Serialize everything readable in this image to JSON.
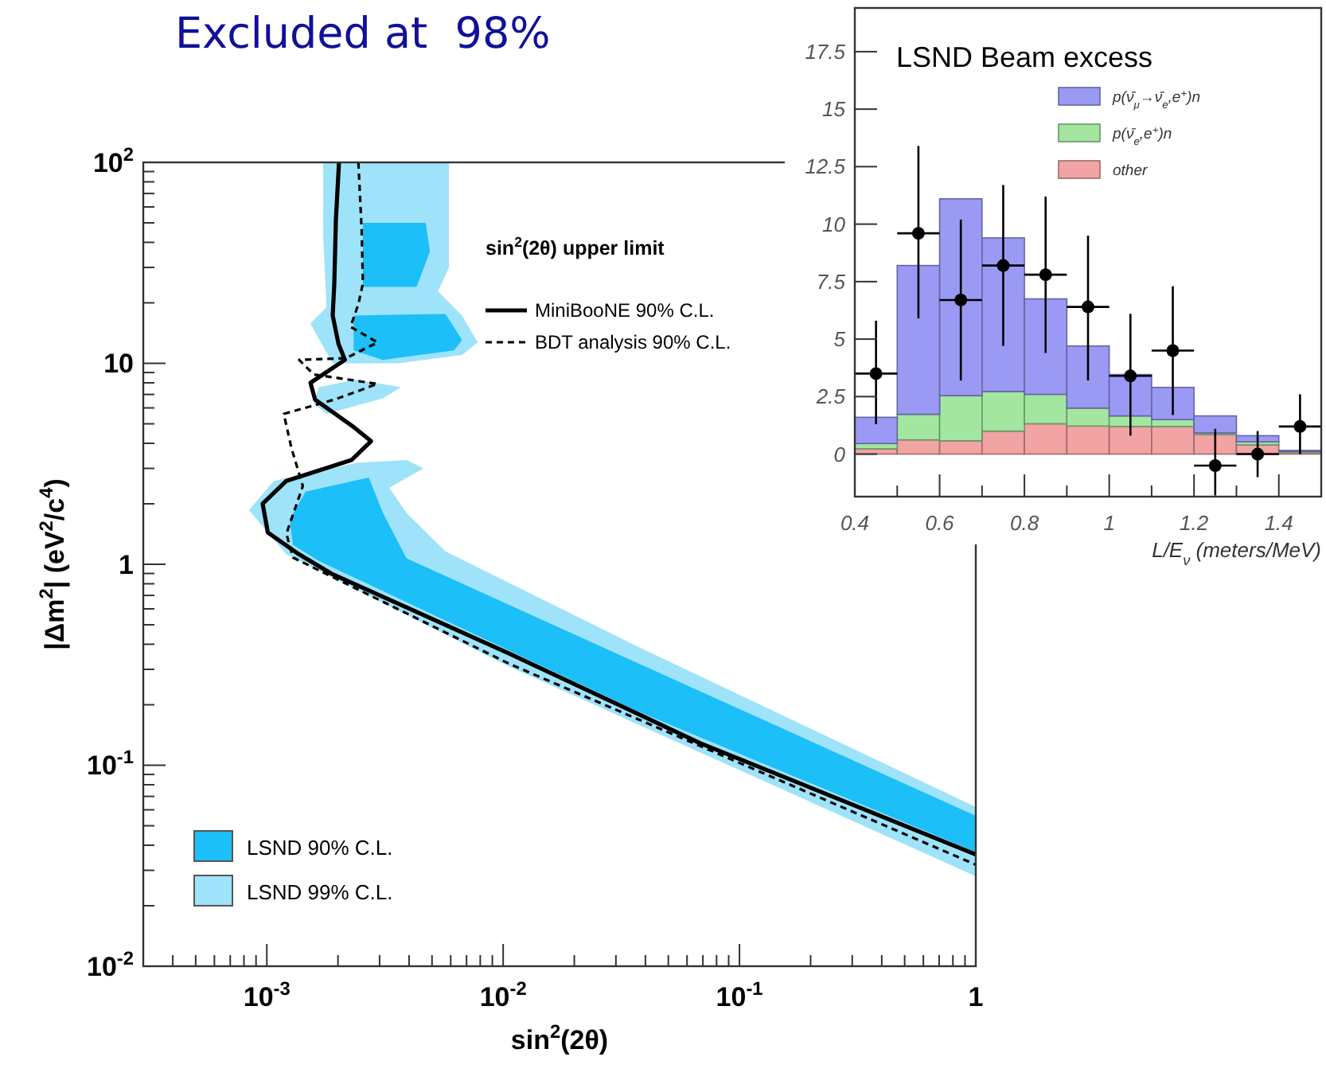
{
  "chart_data": [
    {
      "type": "line",
      "title": "Excluded at  98%",
      "xlabel": "sin$^{2}$(2θ)",
      "ylabel": "|Δm$^{2}$|  (eV$^{2}$/c$^{4}$)",
      "legend_title": "sin$^{2}$(2θ) upper limit",
      "log": "xy",
      "legend": "bottom left",
      "xlim": [
        0.0003,
        1
      ],
      "ylim": [
        0.01,
        100
      ],
      "xticks": [
        {
          "value": 0.0004,
          "label": null
        },
        {
          "value": 0.0005,
          "label": null
        },
        {
          "value": 0.0006,
          "label": null
        },
        {
          "value": 0.0007,
          "label": null
        },
        {
          "value": 0.0008,
          "label": null
        },
        {
          "value": 0.0009,
          "label": null
        },
        {
          "value": 0.001,
          "label": "10$^{-3}$"
        },
        {
          "value": 0.002,
          "label": null
        },
        {
          "value": 0.003,
          "label": null
        },
        {
          "value": 0.004,
          "label": null
        },
        {
          "value": 0.005,
          "label": null
        },
        {
          "value": 0.006,
          "label": null
        },
        {
          "value": 0.007,
          "label": null
        },
        {
          "value": 0.008,
          "label": null
        },
        {
          "value": 0.009,
          "label": null
        },
        {
          "value": 0.01,
          "label": "10$^{-2}$"
        },
        {
          "value": 0.02,
          "label": null
        },
        {
          "value": 0.03,
          "label": null
        },
        {
          "value": 0.04,
          "label": null
        },
        {
          "value": 0.05,
          "label": null
        },
        {
          "value": 0.06,
          "label": null
        },
        {
          "value": 0.07,
          "label": null
        },
        {
          "value": 0.08,
          "label": null
        },
        {
          "value": 0.09,
          "label": null
        },
        {
          "value": 0.1,
          "label": "10$^{-1}$"
        },
        {
          "value": 0.2,
          "label": null
        },
        {
          "value": 0.3,
          "label": null
        },
        {
          "value": 0.4,
          "label": null
        },
        {
          "value": 0.5,
          "label": null
        },
        {
          "value": 0.6,
          "label": null
        },
        {
          "value": 0.7,
          "label": null
        },
        {
          "value": 0.8,
          "label": null
        },
        {
          "value": 0.9,
          "label": null
        },
        1
      ],
      "yticks": [
        {
          "value": 0.01,
          "label": "10$^{-2}$"
        },
        {
          "value": 0.02,
          "label": null
        },
        {
          "value": 0.03,
          "label": null
        },
        {
          "value": 0.04,
          "label": null
        },
        {
          "value": 0.05,
          "label": null
        },
        {
          "value": 0.06,
          "label": null
        },
        {
          "value": 0.07,
          "label": null
        },
        {
          "value": 0.08,
          "label": null
        },
        {
          "value": 0.09,
          "label": null
        },
        {
          "value": 0.1,
          "label": "10$^{-1}$"
        },
        {
          "value": 0.2,
          "label": null
        },
        {
          "value": 0.3,
          "label": null
        },
        {
          "value": 0.4,
          "label": null
        },
        {
          "value": 0.5,
          "label": null
        },
        {
          "value": 0.6,
          "label": null
        },
        {
          "value": 0.7,
          "label": null
        },
        {
          "value": 0.8,
          "label": null
        },
        {
          "value": 0.9,
          "label": null
        },
        1,
        {
          "value": 2,
          "label": null
        },
        {
          "value": 3,
          "label": null
        },
        {
          "value": 4,
          "label": null
        },
        {
          "value": 5,
          "label": null
        },
        {
          "value": 6,
          "label": null
        },
        {
          "value": 7,
          "label": null
        },
        {
          "value": 8,
          "label": null
        },
        {
          "value": 9,
          "label": null
        },
        10,
        {
          "value": 20,
          "label": null
        },
        {
          "value": 30,
          "label": null
        },
        {
          "value": 40,
          "label": null
        },
        {
          "value": 50,
          "label": null
        },
        {
          "value": 60,
          "label": null
        },
        {
          "value": 70,
          "label": null
        },
        {
          "value": 80,
          "label": null
        },
        {
          "value": 90,
          "label": null
        },
        {
          "value": 100,
          "label": "10$^{2}$"
        }
      ],
      "series": [
        {
          "name": "LSND 90% C.L.",
          "type": "area",
          "color": "#1cbff7",
          "x": [
            0.00255,
            0.0047,
            0.0049,
            0.0043,
            0.00255,
            null,
            0.00233,
            0.0057,
            0.0067,
            0.0062,
            0.0031,
            0.00233,
            null,
            0.00125,
            0.00146,
            0.0027,
            0.0031,
            0.0039,
            0.0198,
            1,
            1,
            0.037,
            0.00166,
            0.00129
          ],
          "values": [
            50,
            50,
            36,
            24,
            24,
            null,
            17.3,
            17.6,
            13.1,
            11.6,
            10.4,
            11.6,
            null,
            1.67,
            2.3,
            2.7,
            1.8,
            1.07,
            0.45,
            0.056,
            0.037,
            0.186,
            1.04,
            1.25
          ]
        },
        {
          "name": "LSND 99% C.L.",
          "type": "area",
          "color": "#9ee3f9",
          "x": [
            0.00173,
            0.0059,
            0.0059,
            0.0053,
            0.0067,
            0.0078,
            0.0067,
            0.0036,
            0.0019,
            0.00166,
            0.00153,
            0.00179,
            0.00173,
            null,
            0.00166,
            0.00237,
            0.0037,
            0.0031,
            0.00179,
            0.00158,
            null,
            0.00084,
            0.00107,
            0.0024,
            0.0039,
            0.0046,
            0.0033,
            0.0039,
            0.0057,
            0.037,
            1,
            1,
            0.0106,
            0.00121
          ],
          "values": [
            100,
            100,
            30,
            22.8,
            17.3,
            12.7,
            11,
            10,
            10,
            13.2,
            15.8,
            19,
            43,
            null,
            7.6,
            8.3,
            7.6,
            6.7,
            5.6,
            6.3,
            null,
            1.86,
            2.6,
            3.2,
            3.3,
            3,
            2.4,
            1.8,
            1.16,
            0.39,
            0.062,
            0.028,
            0.31,
            1.12
          ]
        },
        {
          "name": "MiniBooNE 90% C.L.",
          "type": "line",
          "color": "#000000",
          "line_style": "solid",
          "x": [
            0.00202,
            0.00196,
            0.00193,
            0.0019,
            0.00201,
            0.00214,
            0.00153,
            0.0016,
            0.00234,
            0.00276,
            0.00228,
            0.00121,
            0.00096,
            0.00101,
            0.00137,
            0.00187,
            0.0106,
            0.068,
            1
          ],
          "values": [
            100,
            51.8,
            25,
            17.3,
            12.5,
            10.4,
            8,
            6.6,
            4.8,
            4.1,
            3.3,
            2.6,
            2,
            1.44,
            1.12,
            0.9,
            0.36,
            0.129,
            0.036
          ]
        },
        {
          "name": "BDT analysis 90% C.L.",
          "type": "line",
          "color": "#000000",
          "line_style": "dashed",
          "x": [
            0.00244,
            0.00252,
            0.00255,
            0.00244,
            0.00226,
            0.00294,
            0.00216,
            0.00137,
            0.00158,
            0.00294,
            0.00193,
            0.00118,
            0.00127,
            0.00142,
            0.00121,
            0.00129,
            0.0106,
            1
          ],
          "values": [
            100,
            45.6,
            25,
            19.7,
            15.2,
            12.7,
            10.6,
            10.4,
            8.8,
            7.9,
            6.6,
            5.6,
            3.8,
            2.45,
            1.42,
            1.08,
            0.32,
            0.032
          ]
        }
      ]
    },
    {
      "type": "bar",
      "title": "LSND Beam excess",
      "xlabel": "L/E$_{ν}$ (meters/MeV)",
      "stacked": true,
      "legend": "top right",
      "xlim": [
        0.4,
        1.5
      ],
      "ylim": [
        -1.85,
        19.4
      ],
      "xticks": [
        0.4,
        {
          "value": 0.5,
          "label": null
        },
        0.6,
        {
          "value": 0.7,
          "label": null
        },
        0.8,
        {
          "value": 0.9,
          "label": null
        },
        1,
        {
          "value": 1.1,
          "label": null
        },
        1.2,
        {
          "value": 1.3,
          "label": null
        },
        1.4,
        {
          "value": 1.5,
          "label": null
        }
      ],
      "yticks": [
        0,
        2.5,
        5,
        7.5,
        10,
        12.5,
        15,
        17.5
      ],
      "x": [
        0.45,
        0.55,
        0.65,
        0.75,
        0.85,
        0.95,
        1.05,
        1.15,
        1.25,
        1.35,
        1.45
      ],
      "series": [
        {
          "name": "other",
          "color": "#f2a3a3",
          "values": [
            0.23,
            0.62,
            0.58,
            1,
            1.32,
            1.22,
            1.2,
            1.2,
            0.85,
            0.4,
            0.07
          ]
        },
        {
          "name": "p(ν̄$_{e}$,e$^{+}$)n",
          "color": "#a3e6a0",
          "values": [
            0.23,
            1.11,
            1.96,
            1.72,
            1.28,
            0.78,
            0.46,
            0.3,
            0.07,
            0.13,
            0.05
          ]
        },
        {
          "name": "p(ν̄$_{μ}$→ν̄$_{e}$,e$^{+}$)n",
          "color": "#9a9af5",
          "values": [
            1.14,
            6.47,
            8.56,
            6.68,
            4.15,
            2.7,
            1.8,
            1.4,
            0.74,
            0.27,
            0.04
          ]
        },
        {
          "type": "scatter",
          "color": "#000000",
          "marker": "circle",
          "x": [
            0.45,
            0.55,
            0.65,
            0.75,
            0.85,
            0.95,
            1.05,
            1.15,
            1.25,
            1.35,
            1.45
          ],
          "values": [
            3.5,
            9.6,
            6.7,
            8.2,
            7.8,
            6.4,
            3.4,
            4.5,
            -0.5,
            0,
            1.2
          ],
          "errors": [
            [
              1.3,
              5.8
            ],
            [
              5.9,
              13.4
            ],
            [
              3.2,
              10.2
            ],
            [
              4.7,
              11.7
            ],
            [
              4.4,
              11.2
            ],
            [
              3.2,
              9.5
            ],
            [
              0.8,
              6.1
            ],
            [
              1.7,
              7.3
            ],
            [
              -1.8,
              1.1
            ],
            [
              -1,
              1
            ],
            [
              0,
              2.6
            ]
          ],
          "xerrors": [
            0.05,
            0.05,
            0.05,
            0.05,
            0.05,
            0.05,
            0.05,
            0.05,
            0.05,
            0.05,
            0.05
          ]
        }
      ]
    }
  ]
}
